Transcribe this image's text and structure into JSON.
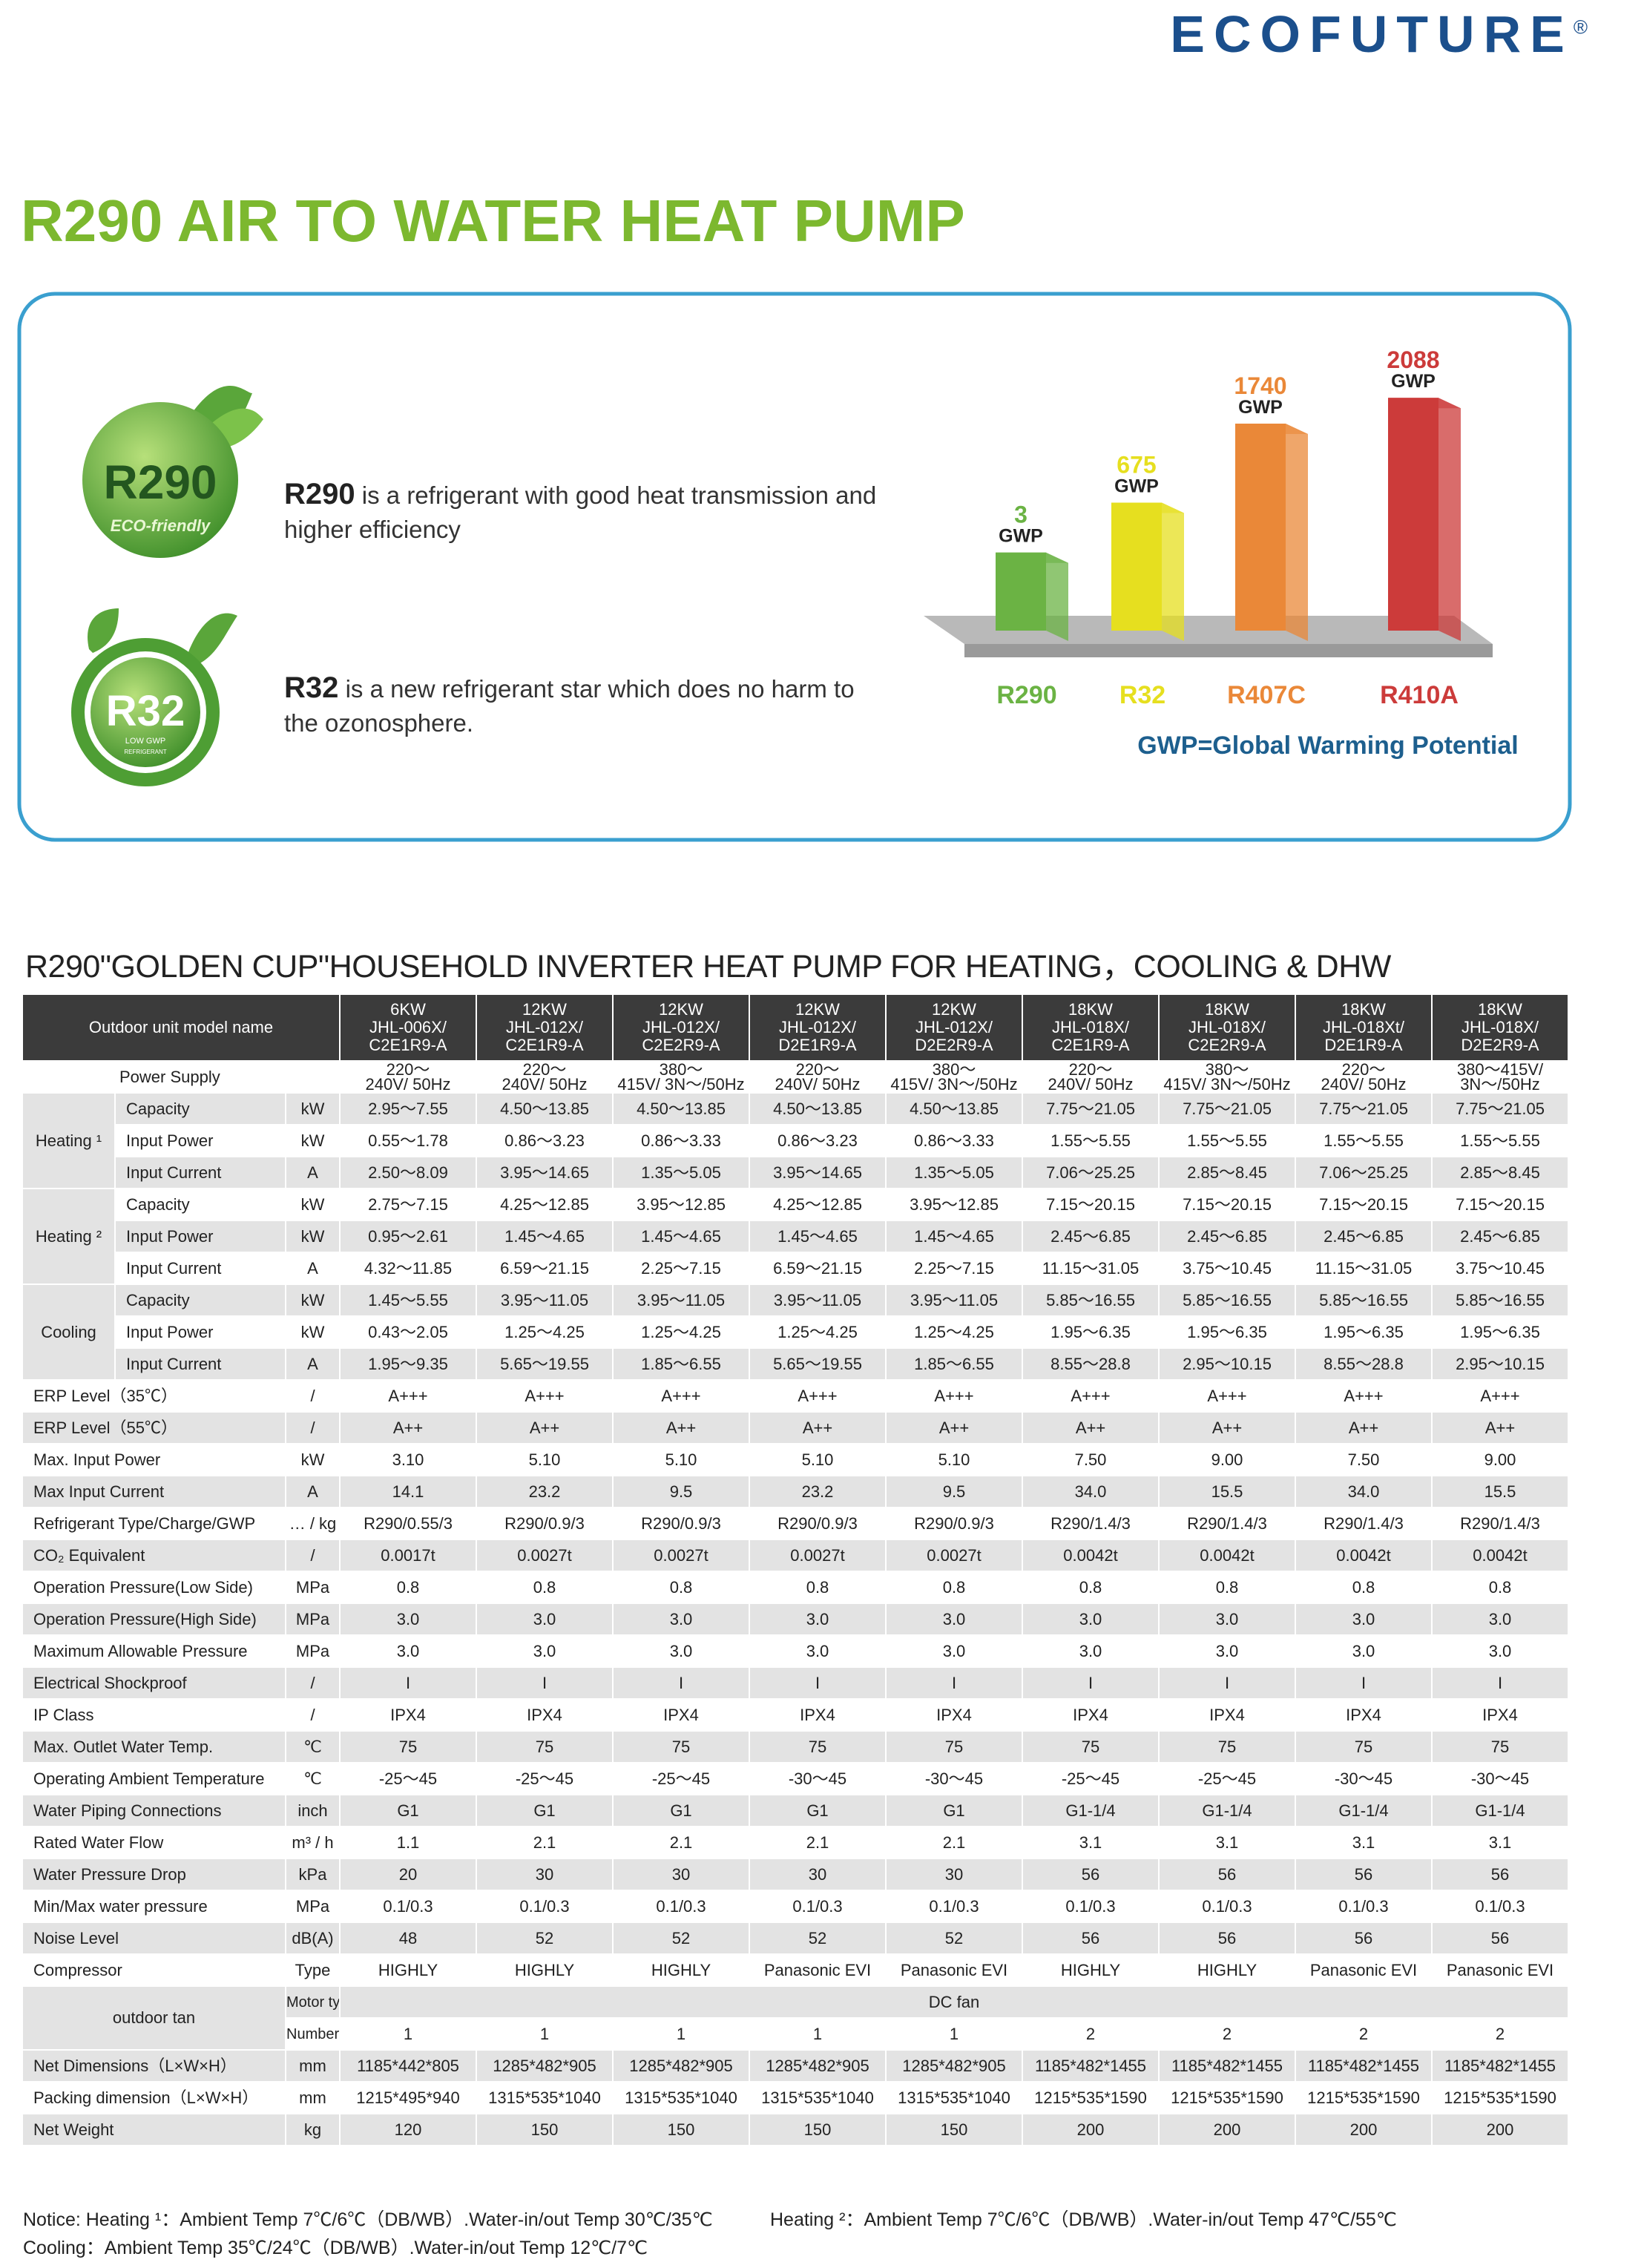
{
  "header": {
    "brand": "ECOFUTURE",
    "mark": "®",
    "title": "R290 AIR TO WATER HEAT PUMP"
  },
  "intro": {
    "logos": [
      {
        "label": "R290",
        "tag": "ECO-friendly"
      },
      {
        "label": "R32",
        "tag": "LOW GWP",
        "sub": "REFRIGERANT"
      }
    ],
    "paragraphs": [
      {
        "term": "R290",
        "text": "is a refrigerant with good heat transmission and higher efficiency"
      },
      {
        "term": "R32",
        "text": "is a new refrigerant star which does no harm to the ozonosphere."
      }
    ]
  },
  "gwp_chart": {
    "type": "bar",
    "categories": [
      "R290",
      "R32",
      "R407C",
      "R410A"
    ],
    "values": [
      3,
      675,
      1740,
      2088
    ],
    "unit": "GWP",
    "colors": [
      "#6bb344",
      "#e6df1f",
      "#ea8838",
      "#cc3b3a"
    ],
    "caption": "GWP=Global Warming Potential"
  },
  "table": {
    "title": "R290\"GOLDEN CUP\"HOUSEHOLD INVERTER HEAT PUMP FOR HEATING，COOLING & DHW",
    "header_label": "Outdoor unit model name",
    "models": [
      [
        "6KW",
        "JHL-006X/",
        "C2E1R9-A"
      ],
      [
        "12KW",
        "JHL-012X/",
        "C2E1R9-A"
      ],
      [
        "12KW",
        "JHL-012X/",
        "C2E2R9-A"
      ],
      [
        "12KW",
        "JHL-012X/",
        "D2E1R9-A"
      ],
      [
        "12KW",
        "JHL-012X/",
        "D2E2R9-A"
      ],
      [
        "18KW",
        "JHL-018X/",
        "C2E1R9-A"
      ],
      [
        "18KW",
        "JHL-018X/",
        "C2E2R9-A"
      ],
      [
        "18KW",
        "JHL-018Xt/",
        "D2E1R9-A"
      ],
      [
        "18KW",
        "JHL-018X/",
        "D2E2R9-A"
      ]
    ],
    "rows": [
      {
        "name": "Power Supply",
        "values": [
          "220～\n240V/ 50Hz",
          "220～\n240V/ 50Hz",
          "380～\n415V/ 3N～/50Hz",
          "220～\n240V/ 50Hz",
          "380～\n415V/ 3N～/50Hz",
          "220～\n240V/ 50Hz",
          "380～\n415V/ 3N～/50Hz",
          "220～\n240V/ 50Hz",
          "380～415V/\n3N～/50Hz"
        ]
      },
      {
        "group": "Heating ¹",
        "rows": [
          {
            "name": "Capacity",
            "unit": "kW",
            "values": [
              "2.95～7.55",
              "4.50～13.85",
              "4.50～13.85",
              "4.50～13.85",
              "4.50～13.85",
              "7.75～21.05",
              "7.75～21.05",
              "7.75～21.05",
              "7.75～21.05"
            ]
          },
          {
            "name": "Input Power",
            "unit": "kW",
            "values": [
              "0.55～1.78",
              "0.86～3.23",
              "0.86～3.33",
              "0.86～3.23",
              "0.86～3.33",
              "1.55～5.55",
              "1.55～5.55",
              "1.55～5.55",
              "1.55～5.55"
            ]
          },
          {
            "name": "Input Current",
            "unit": "A",
            "values": [
              "2.50～8.09",
              "3.95～14.65",
              "1.35～5.05",
              "3.95～14.65",
              "1.35～5.05",
              "7.06～25.25",
              "2.85～8.45",
              "7.06～25.25",
              "2.85～8.45"
            ]
          }
        ]
      },
      {
        "group": "Heating ²",
        "rows": [
          {
            "name": "Capacity",
            "unit": "kW",
            "values": [
              "2.75～7.15",
              "4.25～12.85",
              "3.95～12.85",
              "4.25～12.85",
              "3.95～12.85",
              "7.15～20.15",
              "7.15～20.15",
              "7.15～20.15",
              "7.15～20.15"
            ]
          },
          {
            "name": "Input Power",
            "unit": "kW",
            "values": [
              "0.95～2.61",
              "1.45～4.65",
              "1.45～4.65",
              "1.45～4.65",
              "1.45～4.65",
              "2.45～6.85",
              "2.45～6.85",
              "2.45～6.85",
              "2.45～6.85"
            ]
          },
          {
            "name": "Input Current",
            "unit": "A",
            "values": [
              "4.32～11.85",
              "6.59～21.15",
              "2.25～7.15",
              "6.59～21.15",
              "2.25～7.15",
              "11.15～31.05",
              "3.75～10.45",
              "11.15～31.05",
              "3.75～10.45"
            ]
          }
        ]
      },
      {
        "group": "Cooling",
        "rows": [
          {
            "name": "Capacity",
            "unit": "kW",
            "values": [
              "1.45～5.55",
              "3.95～11.05",
              "3.95～11.05",
              "3.95～11.05",
              "3.95～11.05",
              "5.85～16.55",
              "5.85～16.55",
              "5.85～16.55",
              "5.85～16.55"
            ]
          },
          {
            "name": "Input Power",
            "unit": "kW",
            "values": [
              "0.43～2.05",
              "1.25～4.25",
              "1.25～4.25",
              "1.25～4.25",
              "1.25～4.25",
              "1.95～6.35",
              "1.95～6.35",
              "1.95～6.35",
              "1.95～6.35"
            ]
          },
          {
            "name": "Input Current",
            "unit": "A",
            "values": [
              "1.95～9.35",
              "5.65～19.55",
              "1.85～6.55",
              "5.65～19.55",
              "1.85～6.55",
              "8.55～28.8",
              "2.95～10.15",
              "8.55～28.8",
              "2.95～10.15"
            ]
          }
        ]
      },
      {
        "name": "ERP Level（35℃）",
        "unit": "/",
        "values": [
          "A+++",
          "A+++",
          "A+++",
          "A+++",
          "A+++",
          "A+++",
          "A+++",
          "A+++",
          "A+++"
        ]
      },
      {
        "name": "ERP Level（55℃）",
        "unit": "/",
        "values": [
          "A++",
          "A++",
          "A++",
          "A++",
          "A++",
          "A++",
          "A++",
          "A++",
          "A++"
        ]
      },
      {
        "name": "Max. Input Power",
        "unit": "kW",
        "values": [
          "3.10",
          "5.10",
          "5.10",
          "5.10",
          "5.10",
          "7.50",
          "9.00",
          "7.50",
          "9.00"
        ]
      },
      {
        "name": "Max Input Current",
        "unit": "A",
        "values": [
          "14.1",
          "23.2",
          "9.5",
          "23.2",
          "9.5",
          "34.0",
          "15.5",
          "34.0",
          "15.5"
        ]
      },
      {
        "name": "Refrigerant Type/Charge/GWP",
        "unit": "… / kg",
        "values": [
          "R290/0.55/3",
          "R290/0.9/3",
          "R290/0.9/3",
          "R290/0.9/3",
          "R290/0.9/3",
          "R290/1.4/3",
          "R290/1.4/3",
          "R290/1.4/3",
          "R290/1.4/3"
        ]
      },
      {
        "name": "CO₂ Equivalent",
        "unit": "/",
        "values": [
          "0.0017t",
          "0.0027t",
          "0.0027t",
          "0.0027t",
          "0.0027t",
          "0.0042t",
          "0.0042t",
          "0.0042t",
          "0.0042t"
        ]
      },
      {
        "name": "Operation Pressure(Low Side)",
        "unit": "MPa",
        "values": [
          "0.8",
          "0.8",
          "0.8",
          "0.8",
          "0.8",
          "0.8",
          "0.8",
          "0.8",
          "0.8"
        ]
      },
      {
        "name": "Operation Pressure(High Side)",
        "unit": "MPa",
        "values": [
          "3.0",
          "3.0",
          "3.0",
          "3.0",
          "3.0",
          "3.0",
          "3.0",
          "3.0",
          "3.0"
        ]
      },
      {
        "name": "Maximum Allowable Pressure",
        "unit": "MPa",
        "values": [
          "3.0",
          "3.0",
          "3.0",
          "3.0",
          "3.0",
          "3.0",
          "3.0",
          "3.0",
          "3.0"
        ]
      },
      {
        "name": "Electrical Shockproof",
        "unit": "/",
        "values": [
          "I",
          "I",
          "I",
          "I",
          "I",
          "I",
          "I",
          "I",
          "I"
        ]
      },
      {
        "name": "IP Class",
        "unit": "/",
        "values": [
          "IPX4",
          "IPX4",
          "IPX4",
          "IPX4",
          "IPX4",
          "IPX4",
          "IPX4",
          "IPX4",
          "IPX4"
        ]
      },
      {
        "name": "Max. Outlet Water Temp.",
        "unit": "℃",
        "values": [
          "75",
          "75",
          "75",
          "75",
          "75",
          "75",
          "75",
          "75",
          "75"
        ]
      },
      {
        "name": "Operating Ambient Temperature",
        "unit": "℃",
        "values": [
          "-25～45",
          "-25～45",
          "-25～45",
          "-30～45",
          "-30～45",
          "-25～45",
          "-25～45",
          "-30～45",
          "-30～45"
        ]
      },
      {
        "name": "Water Piping Connections",
        "unit": "inch",
        "values": [
          "G1",
          "G1",
          "G1",
          "G1",
          "G1",
          "G1-1/4",
          "G1-1/4",
          "G1-1/4",
          "G1-1/4"
        ]
      },
      {
        "name": "Rated Water Flow",
        "unit": "m³ / h",
        "values": [
          "1.1",
          "2.1",
          "2.1",
          "2.1",
          "2.1",
          "3.1",
          "3.1",
          "3.1",
          "3.1"
        ]
      },
      {
        "name": "Water Pressure Drop",
        "unit": "kPa",
        "values": [
          "20",
          "30",
          "30",
          "30",
          "30",
          "56",
          "56",
          "56",
          "56"
        ]
      },
      {
        "name": "Min/Max water pressure",
        "unit": "MPa",
        "values": [
          "0.1/0.3",
          "0.1/0.3",
          "0.1/0.3",
          "0.1/0.3",
          "0.1/0.3",
          "0.1/0.3",
          "0.1/0.3",
          "0.1/0.3",
          "0.1/0.3"
        ]
      },
      {
        "name": "Noise Level",
        "unit": "dB(A)",
        "values": [
          "48",
          "52",
          "52",
          "52",
          "52",
          "56",
          "56",
          "56",
          "56"
        ]
      },
      {
        "name": "Compressor",
        "unit": "Type",
        "values": [
          "HIGHLY",
          "HIGHLY",
          "HIGHLY",
          "Panasonic  EVI",
          "Panasonic  EVI",
          "HIGHLY",
          "HIGHLY",
          "Panasonic  EVI",
          "Panasonic  EVI"
        ]
      },
      {
        "group": "outdoor tan",
        "rows": [
          {
            "name": "Motor type",
            "values": [
              "DC fan"
            ]
          },
          {
            "name": "Number of fans",
            "values": [
              "1",
              "1",
              "1",
              "1",
              "1",
              "2",
              "2",
              "2",
              "2"
            ]
          }
        ]
      },
      {
        "name": "Net Dimensions（L×W×H）",
        "unit": "mm",
        "values": [
          "1185*442*805",
          "1285*482*905",
          "1285*482*905",
          "1285*482*905",
          "1285*482*905",
          "1185*482*1455",
          "1185*482*1455",
          "1185*482*1455",
          "1185*482*1455"
        ]
      },
      {
        "name": "Packing dimension（L×W×H）",
        "unit": "mm",
        "values": [
          "1215*495*940",
          "1315*535*1040",
          "1315*535*1040",
          "1315*535*1040",
          "1315*535*1040",
          "1215*535*1590",
          "1215*535*1590",
          "1215*535*1590",
          "1215*535*1590"
        ]
      },
      {
        "name": "Net Weight",
        "unit": "kg",
        "values": [
          "120",
          "150",
          "150",
          "150",
          "150",
          "200",
          "200",
          "200",
          "200"
        ]
      }
    ]
  },
  "notes": [
    "Notice: Heating ¹：Ambient Temp 7℃/6℃（DB/WB）.Water-in/out Temp 30℃/35℃",
    "Heating ²：Ambient Temp 7℃/6℃（DB/WB）.Water-in/out Temp 47℃/55℃",
    "Cooling：Ambient Temp 35℃/24℃（DB/WB）.Water-in/out Temp 12℃/7℃"
  ]
}
